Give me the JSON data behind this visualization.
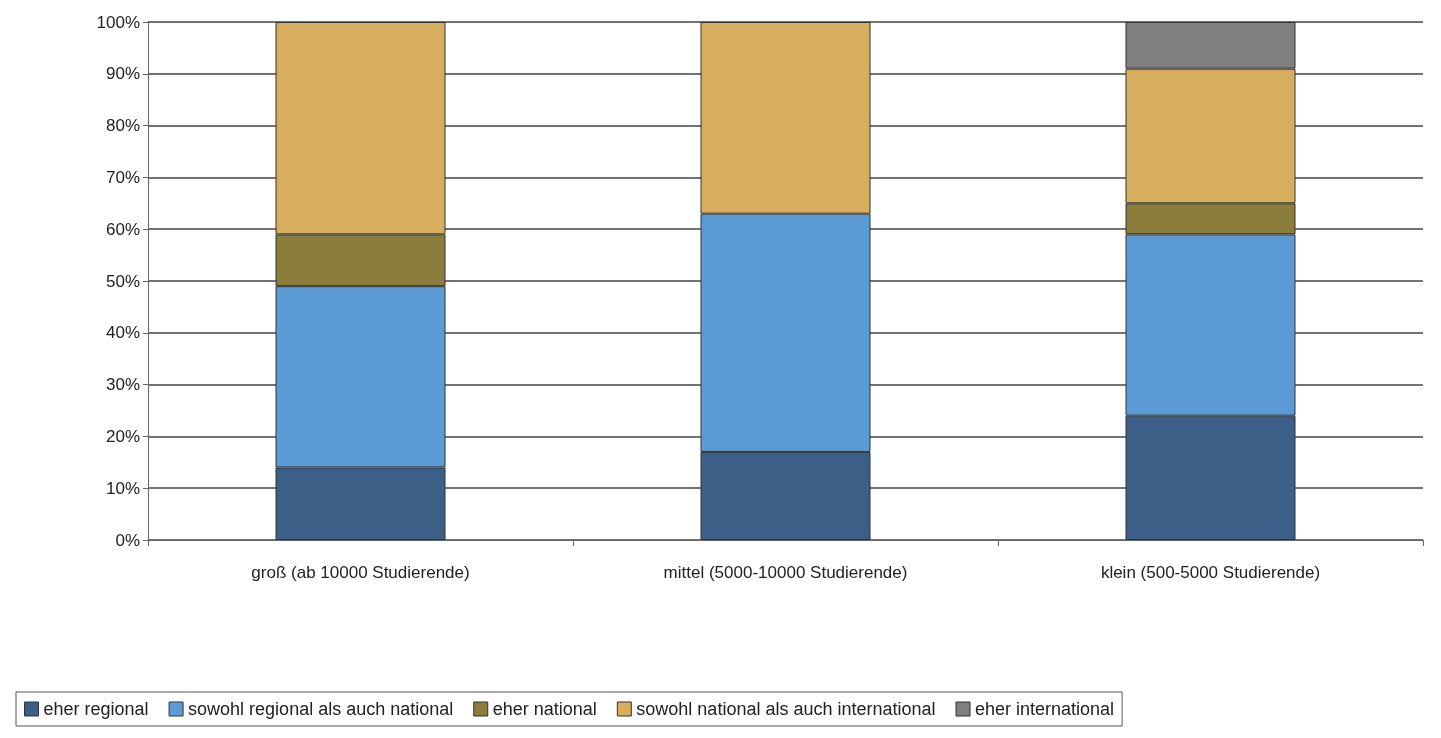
{
  "chart_data": {
    "type": "bar",
    "stacked": true,
    "categories": [
      "groß (ab 10000 Studierende)",
      "mittel (5000-10000 Studierende)",
      "klein (500-5000 Studierende)"
    ],
    "series": [
      {
        "name": "eher regional",
        "color": "#3b5f87",
        "values": [
          14,
          17,
          24
        ]
      },
      {
        "name": "sowohl regional als auch national",
        "color": "#5b9bd5",
        "values": [
          35,
          46,
          35
        ]
      },
      {
        "name": "eher national",
        "color": "#8b7d3c",
        "values": [
          10,
          0,
          6
        ]
      },
      {
        "name": "sowohl national als auch international",
        "color": "#d6ae5e",
        "values": [
          41,
          37,
          26
        ]
      },
      {
        "name": "eher international",
        "color": "#7f7f7f",
        "values": [
          0,
          0,
          9
        ]
      }
    ],
    "ylim": [
      0,
      100
    ],
    "yticks": [
      {
        "value": 0,
        "label": "0%"
      },
      {
        "value": 10,
        "label": "10%"
      },
      {
        "value": 20,
        "label": "20%"
      },
      {
        "value": 30,
        "label": "30%"
      },
      {
        "value": 40,
        "label": "40%"
      },
      {
        "value": 50,
        "label": "50%"
      },
      {
        "value": 60,
        "label": "60%"
      },
      {
        "value": 70,
        "label": "70%"
      },
      {
        "value": 80,
        "label": "80%"
      },
      {
        "value": 90,
        "label": "90%"
      },
      {
        "value": 100,
        "label": "100%"
      }
    ],
    "grid": "y",
    "legend": "bottom"
  }
}
